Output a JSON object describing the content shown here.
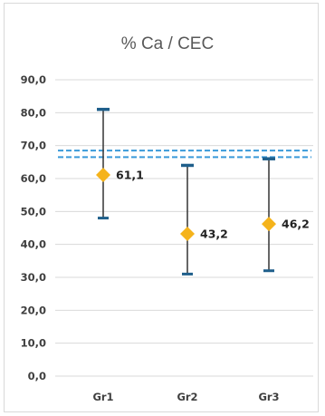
{
  "chart_data": {
    "type": "scatter",
    "title": "% Ca / CEC",
    "xlabel": "",
    "ylabel": "",
    "categories": [
      "Gr1",
      "Gr2",
      "Gr3"
    ],
    "ylim": [
      0,
      90
    ],
    "yticks": [
      0,
      10,
      20,
      30,
      40,
      50,
      60,
      70,
      80,
      90
    ],
    "ytick_labels": [
      "0,0",
      "10,0",
      "20,0",
      "30,0",
      "40,0",
      "50,0",
      "60,0",
      "70,0",
      "80,0",
      "90,0"
    ],
    "series": [
      {
        "values": [
          61.1,
          43.2,
          46.2
        ],
        "labels": [
          "61,1",
          "43,2",
          "46,2"
        ],
        "min": [
          48,
          31,
          32
        ],
        "max": [
          81,
          64,
          66
        ],
        "marker": "diamond",
        "color": "#f5b31b",
        "error_color": "#404040",
        "cap_color": "#1f5f8b"
      }
    ],
    "reference_band": {
      "low": 66.5,
      "high": 68.5,
      "style": "dashed",
      "color": "#3a9ad9"
    },
    "grid": "horizontal",
    "legend": "none"
  }
}
